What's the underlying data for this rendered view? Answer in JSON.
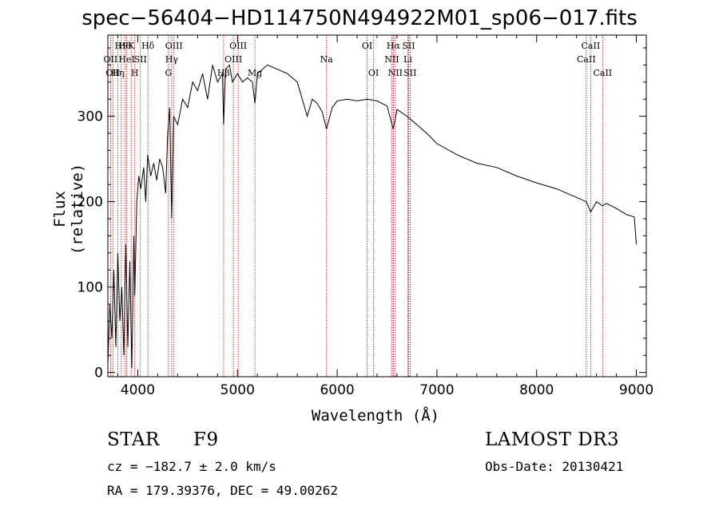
{
  "chart_data": {
    "type": "line",
    "title": "spec−56404−HD114750N494922M01_sp06−017.fits",
    "xlabel": "Wavelength (Å)",
    "ylabel": "Flux (relative)",
    "xlim": [
      3700,
      9100
    ],
    "ylim": [
      -5,
      395
    ],
    "xticks": [
      4000,
      5000,
      6000,
      7000,
      8000,
      9000
    ],
    "yticks": [
      0,
      100,
      200,
      300
    ],
    "xtick_labels": [
      "4000",
      "5000",
      "6000",
      "7000",
      "8000",
      "9000"
    ],
    "ytick_labels": [
      "0",
      "100",
      "200",
      "300"
    ],
    "series": [
      {
        "name": "flux",
        "x": [
          3700,
          3720,
          3740,
          3760,
          3780,
          3800,
          3820,
          3840,
          3860,
          3880,
          3900,
          3920,
          3940,
          3960,
          3970,
          3990,
          4010,
          4030,
          4060,
          4080,
          4100,
          4130,
          4160,
          4190,
          4220,
          4250,
          4280,
          4300,
          4320,
          4340,
          4360,
          4400,
          4450,
          4500,
          4550,
          4600,
          4650,
          4700,
          4750,
          4800,
          4850,
          4861,
          4880,
          4920,
          4950,
          5000,
          5050,
          5100,
          5150,
          5175,
          5200,
          5300,
          5400,
          5500,
          5600,
          5650,
          5700,
          5750,
          5800,
          5850,
          5893,
          5950,
          6000,
          6100,
          6200,
          6300,
          6400,
          6500,
          6563,
          6600,
          6700,
          6800,
          6900,
          7000,
          7200,
          7400,
          7600,
          7800,
          8000,
          8200,
          8400,
          8498,
          8542,
          8600,
          8662,
          8700,
          8800,
          8900,
          8980,
          9000
        ],
        "y": [
          10,
          80,
          40,
          120,
          30,
          140,
          60,
          100,
          20,
          150,
          30,
          130,
          5,
          160,
          90,
          200,
          230,
          215,
          240,
          200,
          255,
          230,
          245,
          225,
          250,
          240,
          210,
          280,
          310,
          180,
          300,
          290,
          320,
          310,
          340,
          330,
          350,
          320,
          360,
          340,
          350,
          290,
          355,
          360,
          340,
          350,
          340,
          345,
          340,
          315,
          350,
          360,
          355,
          350,
          340,
          320,
          300,
          320,
          315,
          305,
          285,
          310,
          318,
          320,
          318,
          320,
          318,
          312,
          285,
          308,
          300,
          290,
          280,
          268,
          255,
          245,
          240,
          230,
          222,
          215,
          205,
          200,
          188,
          200,
          195,
          198,
          192,
          185,
          182,
          150
        ]
      }
    ],
    "lines": [
      {
        "x": 3727,
        "label": "OII",
        "row": 2
      },
      {
        "x": 3750,
        "label": "OII",
        "row": 3
      },
      {
        "x": 3799,
        "label": "Hη",
        "row": 3
      },
      {
        "x": 3835,
        "label": "H9",
        "row": 1
      },
      {
        "x": 3869,
        "label": "Hθ",
        "row": 1
      },
      {
        "x": 3889,
        "label": "HeI",
        "row": 2
      },
      {
        "x": 3934,
        "label": "K",
        "row": 1
      },
      {
        "x": 3970,
        "label": "H",
        "row": 3
      },
      {
        "x": 4026,
        "label": "SII",
        "row": 2
      },
      {
        "x": 4102,
        "label": "Hδ",
        "row": 1
      },
      {
        "x": 4308,
        "label": "G",
        "row": 3
      },
      {
        "x": 4340,
        "label": "Hγ",
        "row": 2
      },
      {
        "x": 4363,
        "label": "OIII",
        "row": 1
      },
      {
        "x": 4861,
        "label": "Hβ",
        "row": 3
      },
      {
        "x": 4959,
        "label": "OIII",
        "row": 2
      },
      {
        "x": 5007,
        "label": "OIII",
        "row": 1
      },
      {
        "x": 5175,
        "label": "Mg",
        "row": 3
      },
      {
        "x": 5893,
        "label": "Na",
        "row": 2
      },
      {
        "x": 6300,
        "label": "OI",
        "row": 1
      },
      {
        "x": 6364,
        "label": "OI",
        "row": 3
      },
      {
        "x": 6548,
        "label": "NII",
        "row": 2
      },
      {
        "x": 6563,
        "label": "Hα",
        "row": 1
      },
      {
        "x": 6583,
        "label": "NII",
        "row": 3
      },
      {
        "x": 6708,
        "label": "Li",
        "row": 2
      },
      {
        "x": 6716,
        "label": "SII",
        "row": 1
      },
      {
        "x": 6731,
        "label": "SII",
        "row": 3
      },
      {
        "x": 8498,
        "label": "CaII",
        "row": 2
      },
      {
        "x": 8542,
        "label": "CaII",
        "row": 1
      },
      {
        "x": 8662,
        "label": "CaII",
        "row": 3
      }
    ]
  },
  "footer": {
    "object_class": "STAR",
    "subclass": "F9",
    "survey": "LAMOST DR3",
    "cz": "cz = −182.7 ± 2.0 km/s",
    "obs_date": "Obs-Date: 20130421",
    "coords": "RA = 179.39376, DEC =  49.00262"
  },
  "colors": {
    "spectrum": "#000000",
    "line_markers": "#cc0000"
  }
}
